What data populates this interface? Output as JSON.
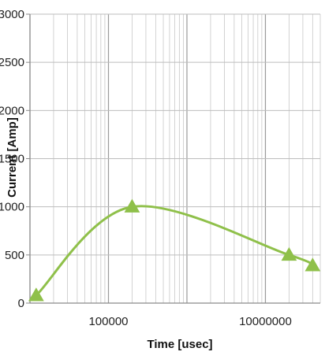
{
  "chart_data": {
    "type": "line",
    "title": "",
    "xlabel": "Time [usec]",
    "ylabel": "Current [Amp]",
    "x_scale": "log",
    "xlim": [
      10000,
      50000000
    ],
    "ylim": [
      0,
      3000
    ],
    "x_ticks": [
      {
        "value": 100000,
        "label": "100000"
      },
      {
        "value": 10000000,
        "label": "10000000"
      }
    ],
    "y_ticks": [
      {
        "value": 0,
        "label": "0"
      },
      {
        "value": 500,
        "label": "500"
      },
      {
        "value": 1000,
        "label": "1000"
      },
      {
        "value": 1500,
        "label": "1500"
      },
      {
        "value": 2000,
        "label": "2000"
      },
      {
        "value": 2500,
        "label": "2500"
      },
      {
        "value": 3000,
        "label": "3000"
      }
    ],
    "grid": true,
    "legend": "none",
    "series": [
      {
        "color": "#8fc04a",
        "marker": "triangle",
        "smooth": true,
        "points": [
          {
            "x": 12000,
            "y": 80
          },
          {
            "x": 200000,
            "y": 1000
          },
          {
            "x": 20000000,
            "y": 500
          },
          {
            "x": 40000000,
            "y": 390
          }
        ]
      }
    ]
  }
}
